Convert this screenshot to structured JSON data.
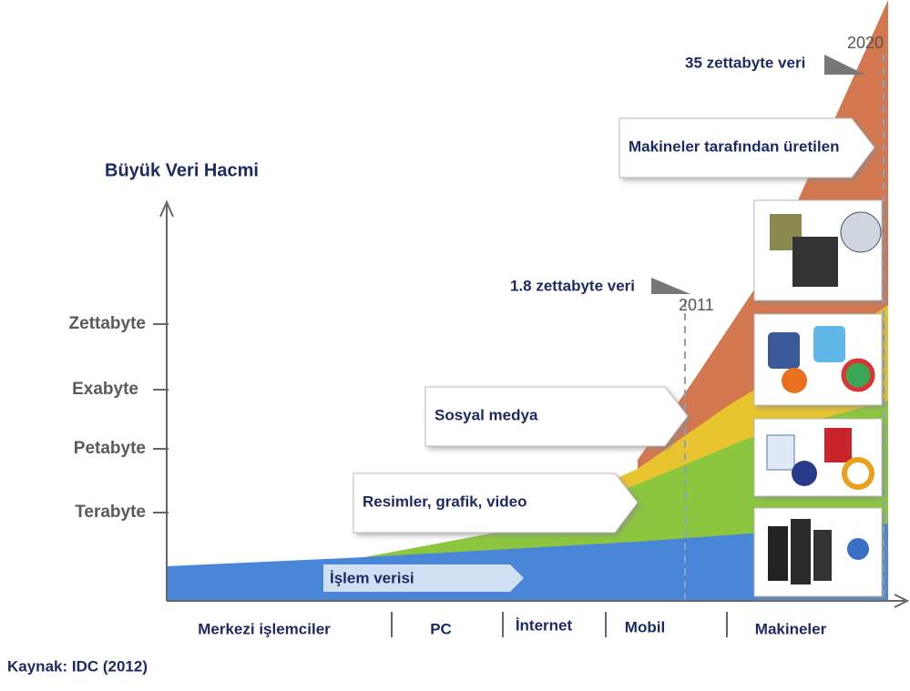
{
  "title": "Büyük Veri Hacmi",
  "y_levels": [
    "Zettabyte",
    "Exabyte",
    "Petabyte",
    "Terabyte"
  ],
  "eras": [
    "Merkezi işlemciler",
    "PC",
    "İnternet",
    "Mobil",
    "Makineler"
  ],
  "milestones": [
    {
      "label": "35 zettabyte veri",
      "year": "2020"
    },
    {
      "label": "1.8 zettabyte veri",
      "year": "2011"
    }
  ],
  "sources": [
    "Makineler tarafından üretilen",
    "Sosyal medya",
    "Resimler, grafik, video",
    "İşlem verisi"
  ],
  "footer": "Kaynak: IDC (2012)"
}
